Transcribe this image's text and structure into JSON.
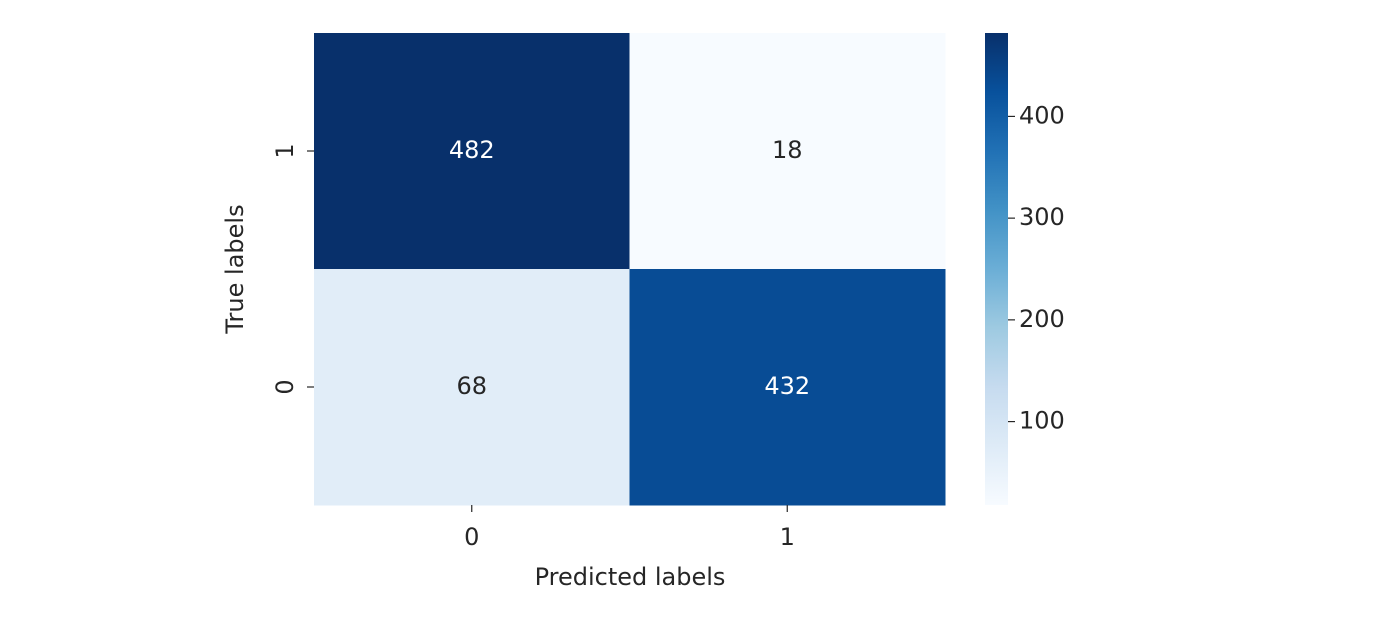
{
  "chart_data": {
    "type": "heatmap",
    "x_categories": [
      "0",
      "1"
    ],
    "y_categories": [
      "1",
      "0"
    ],
    "values": [
      [
        482,
        18
      ],
      [
        68,
        432
      ]
    ],
    "xlabel": "Predicted labels",
    "ylabel": "True labels",
    "colormap": "Blues",
    "zlim": [
      18,
      482
    ],
    "zticks": [
      100,
      200,
      300,
      400
    ]
  }
}
